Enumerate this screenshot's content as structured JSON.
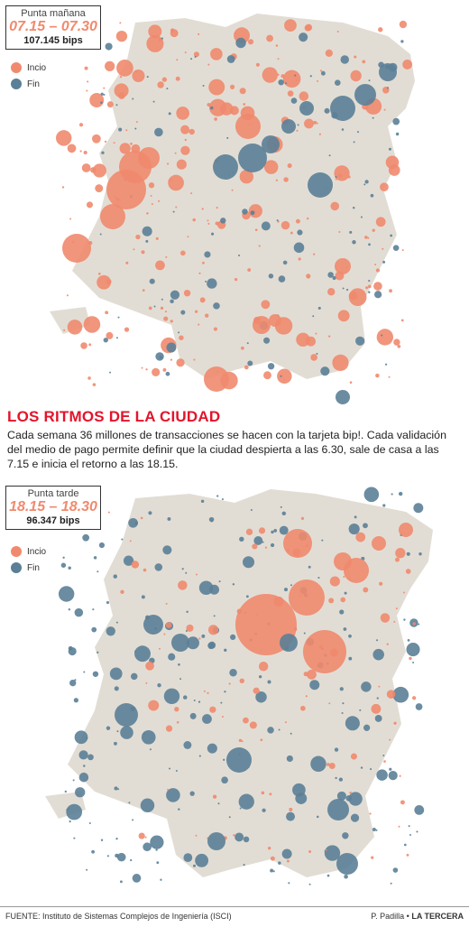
{
  "morning": {
    "period_label": "Punta mañana",
    "time_range": "07.15 – 07.30",
    "count": "107.145 bips"
  },
  "evening": {
    "period_label": "Punta tarde",
    "time_range": "18.15 – 18.30",
    "count": "96.347 bips"
  },
  "legend": {
    "start": "Incio",
    "end": "Fin"
  },
  "colors": {
    "start": "#f08a6e",
    "end": "#5b7f97",
    "city": "#e2ddd4",
    "background": "#ffffff",
    "headline": "#e4142b"
  },
  "headline": "LOS RITMOS DE LA CIUDAD",
  "deck": "Cada semana 36 millones de transacciones se hacen con la tarjeta bip!. Cada validación del medio de pago permite definir que la ciudad despierta a las 6.30, sale de casa a las 7.15 e inicia el retorno a las 18.15.",
  "footer": {
    "source": "FUENTE: Instituto de Sistemas Complejos de Ingeniería (ISCI)",
    "credit_author": "P. Padilla",
    "credit_sep": " • ",
    "credit_outlet": "LA TERCERA"
  }
}
